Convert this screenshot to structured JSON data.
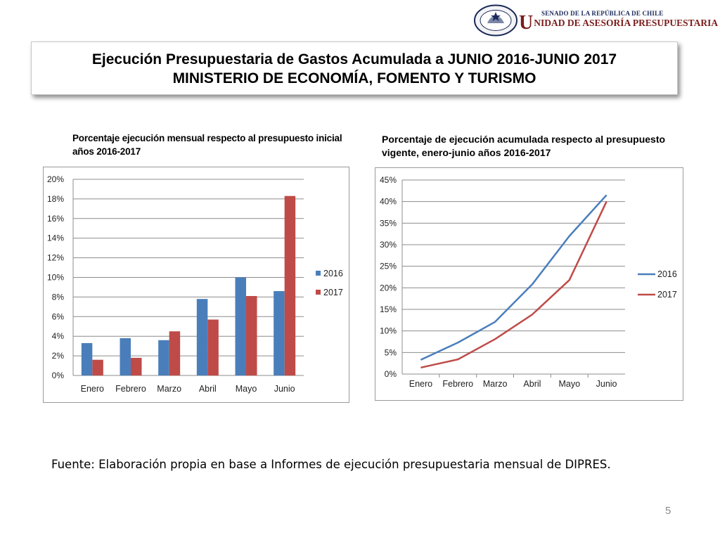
{
  "header": {
    "org_line1": "SENADO DE LA REPÚBLICA DE CHILE",
    "org_line2_initial": "U",
    "org_line2_rest": "NIDAD DE ASESORÍA PRESUPUESTARIA",
    "seal_top_text": "REPÚBLICA DE CHILE",
    "seal_bottom_text": "SENADO"
  },
  "title": {
    "line1": "Ejecución Presupuestaria de Gastos Acumulada a JUNIO 2016-JUNIO 2017",
    "line2": "MINISTERIO DE ECONOMÍA, FOMENTO Y TURISMO"
  },
  "colors": {
    "series_2016": "#4a7ebb",
    "series_2017": "#be4b48",
    "grid": "#8c8c8c",
    "brand": "#7a1c1c"
  },
  "chart_data": [
    {
      "type": "bar",
      "heading_line1": "Porcentaje ejecución mensual respecto al presupuesto inicial",
      "heading_line2": "años 2016-2017",
      "categories": [
        "Enero",
        "Febrero",
        "Marzo",
        "Abril",
        "Mayo",
        "Junio"
      ],
      "series": [
        {
          "name": "2016",
          "values": [
            3.3,
            3.8,
            3.6,
            7.8,
            10.0,
            8.6
          ]
        },
        {
          "name": "2017",
          "values": [
            1.6,
            1.8,
            4.5,
            5.7,
            8.1,
            18.3
          ]
        }
      ],
      "ylim": [
        0,
        20
      ],
      "yticks": [
        "0%",
        "2%",
        "4%",
        "6%",
        "8%",
        "10%",
        "12%",
        "14%",
        "16%",
        "18%",
        "20%"
      ],
      "grid": true,
      "legend": "right"
    },
    {
      "type": "line",
      "heading_line1": "Porcentaje de ejecución acumulada  respecto al presupuesto",
      "heading_line2": "vigente, enero-junio años 2016-2017",
      "categories": [
        "Enero",
        "Febrero",
        "Marzo",
        "Abril",
        "Mayo",
        "Junio"
      ],
      "series": [
        {
          "name": "2016",
          "values": [
            3.3,
            7.3,
            12.1,
            20.8,
            32.0,
            41.5
          ]
        },
        {
          "name": "2017",
          "values": [
            1.5,
            3.4,
            8.1,
            13.8,
            21.8,
            40.0
          ]
        }
      ],
      "ylim": [
        0,
        45
      ],
      "yticks": [
        "0%",
        "5%",
        "10%",
        "15%",
        "20%",
        "25%",
        "30%",
        "35%",
        "40%",
        "45%"
      ],
      "grid": true,
      "legend": "right"
    }
  ],
  "footer": {
    "source": "Fuente: Elaboración propia en base  a Informes de ejecución presupuestaria mensual de DIPRES.",
    "page_number": "5"
  }
}
